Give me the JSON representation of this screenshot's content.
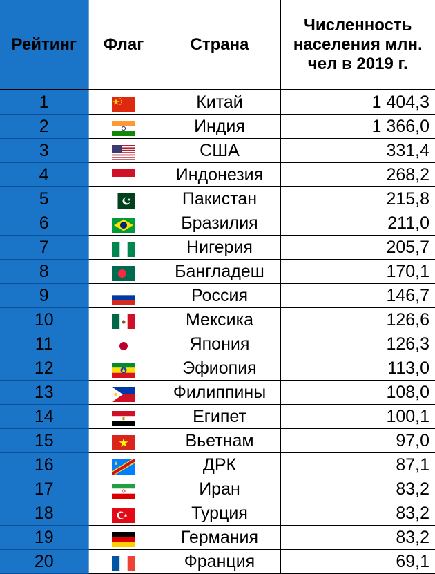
{
  "table": {
    "headers": {
      "rank": "Рейтинг",
      "flag": "Флаг",
      "country": "Страна",
      "population": "Численность населения млн. чел в 2019 г."
    },
    "rows": [
      {
        "rank": "1",
        "flag_icon": "china-flag-icon",
        "country": "Китай",
        "population": "1 404,3"
      },
      {
        "rank": "2",
        "flag_icon": "india-flag-icon",
        "country": "Индия",
        "population": "1 366,0"
      },
      {
        "rank": "3",
        "flag_icon": "usa-flag-icon",
        "country": "США",
        "population": "331,4"
      },
      {
        "rank": "4",
        "flag_icon": "indonesia-flag-icon",
        "country": "Индонезия",
        "population": "268,2"
      },
      {
        "rank": "5",
        "flag_icon": "pakistan-flag-icon",
        "country": "Пакистан",
        "population": "215,8"
      },
      {
        "rank": "6",
        "flag_icon": "brazil-flag-icon",
        "country": "Бразилия",
        "population": "211,0"
      },
      {
        "rank": "7",
        "flag_icon": "nigeria-flag-icon",
        "country": "Нигерия",
        "population": "205,7"
      },
      {
        "rank": "8",
        "flag_icon": "bangladesh-flag-icon",
        "country": "Бангладеш",
        "population": "170,1"
      },
      {
        "rank": "9",
        "flag_icon": "russia-flag-icon",
        "country": "Россия",
        "population": "146,7"
      },
      {
        "rank": "10",
        "flag_icon": "mexico-flag-icon",
        "country": "Мексика",
        "population": "126,6"
      },
      {
        "rank": "11",
        "flag_icon": "japan-flag-icon",
        "country": "Япония",
        "population": "126,3"
      },
      {
        "rank": "12",
        "flag_icon": "ethiopia-flag-icon",
        "country": "Эфиопия",
        "population": "113,0"
      },
      {
        "rank": "13",
        "flag_icon": "philippines-flag-icon",
        "country": "Филиппины",
        "population": "108,0"
      },
      {
        "rank": "14",
        "flag_icon": "egypt-flag-icon",
        "country": "Египет",
        "population": "100,1"
      },
      {
        "rank": "15",
        "flag_icon": "vietnam-flag-icon",
        "country": "Вьетнам",
        "population": "97,0"
      },
      {
        "rank": "16",
        "flag_icon": "drc-flag-icon",
        "country": "ДРК",
        "population": "87,1"
      },
      {
        "rank": "17",
        "flag_icon": "iran-flag-icon",
        "country": "Иран",
        "population": "83,2"
      },
      {
        "rank": "18",
        "flag_icon": "turkey-flag-icon",
        "country": "Турция",
        "population": "83,2"
      },
      {
        "rank": "19",
        "flag_icon": "germany-flag-icon",
        "country": "Германия",
        "population": "83,2"
      },
      {
        "rank": "20",
        "flag_icon": "france-flag-icon",
        "country": "Франция",
        "population": "69,1"
      }
    ]
  },
  "colors": {
    "rank_column": "#1a75c9",
    "grid": "#000000"
  }
}
